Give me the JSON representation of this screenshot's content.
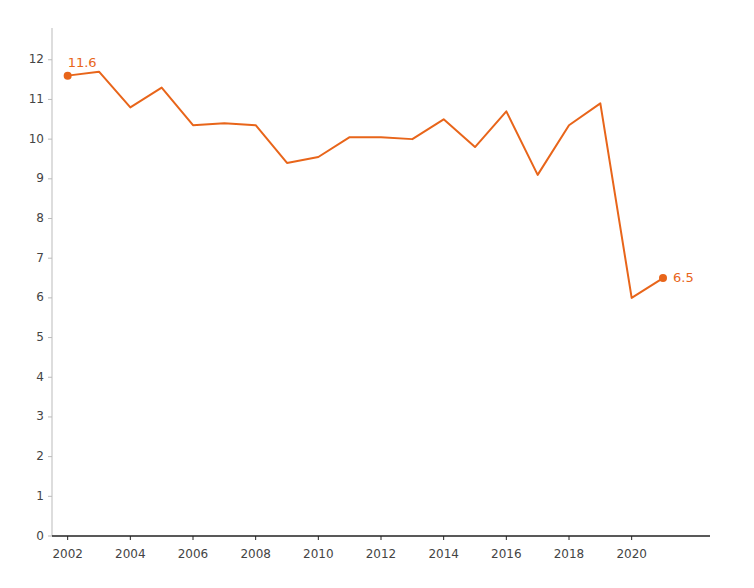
{
  "chart_data": {
    "type": "line",
    "x": [
      2002,
      2003,
      2004,
      2005,
      2006,
      2007,
      2008,
      2009,
      2010,
      2011,
      2012,
      2013,
      2014,
      2015,
      2016,
      2017,
      2018,
      2019,
      2020,
      2021
    ],
    "values": [
      11.6,
      11.7,
      10.8,
      11.3,
      10.35,
      10.4,
      10.35,
      9.4,
      9.55,
      10.05,
      10.05,
      10.0,
      10.5,
      9.8,
      10.7,
      9.1,
      10.35,
      10.9,
      6.0,
      6.5
    ],
    "color": "#E8651A",
    "xlim": [
      2001.5,
      2022.5
    ],
    "xticks": [
      2002,
      2004,
      2006,
      2008,
      2010,
      2012,
      2014,
      2016,
      2018,
      2020
    ],
    "ylim": [
      0,
      12.8
    ],
    "yticks": [
      0,
      1,
      2,
      3,
      4,
      5,
      6,
      7,
      8,
      9,
      10,
      11,
      12
    ],
    "grid": false,
    "annotations": [
      {
        "text": "11.6",
        "x": 2002,
        "y": 11.6
      },
      {
        "text": "6.5",
        "x": 2021,
        "y": 6.5
      }
    ]
  }
}
